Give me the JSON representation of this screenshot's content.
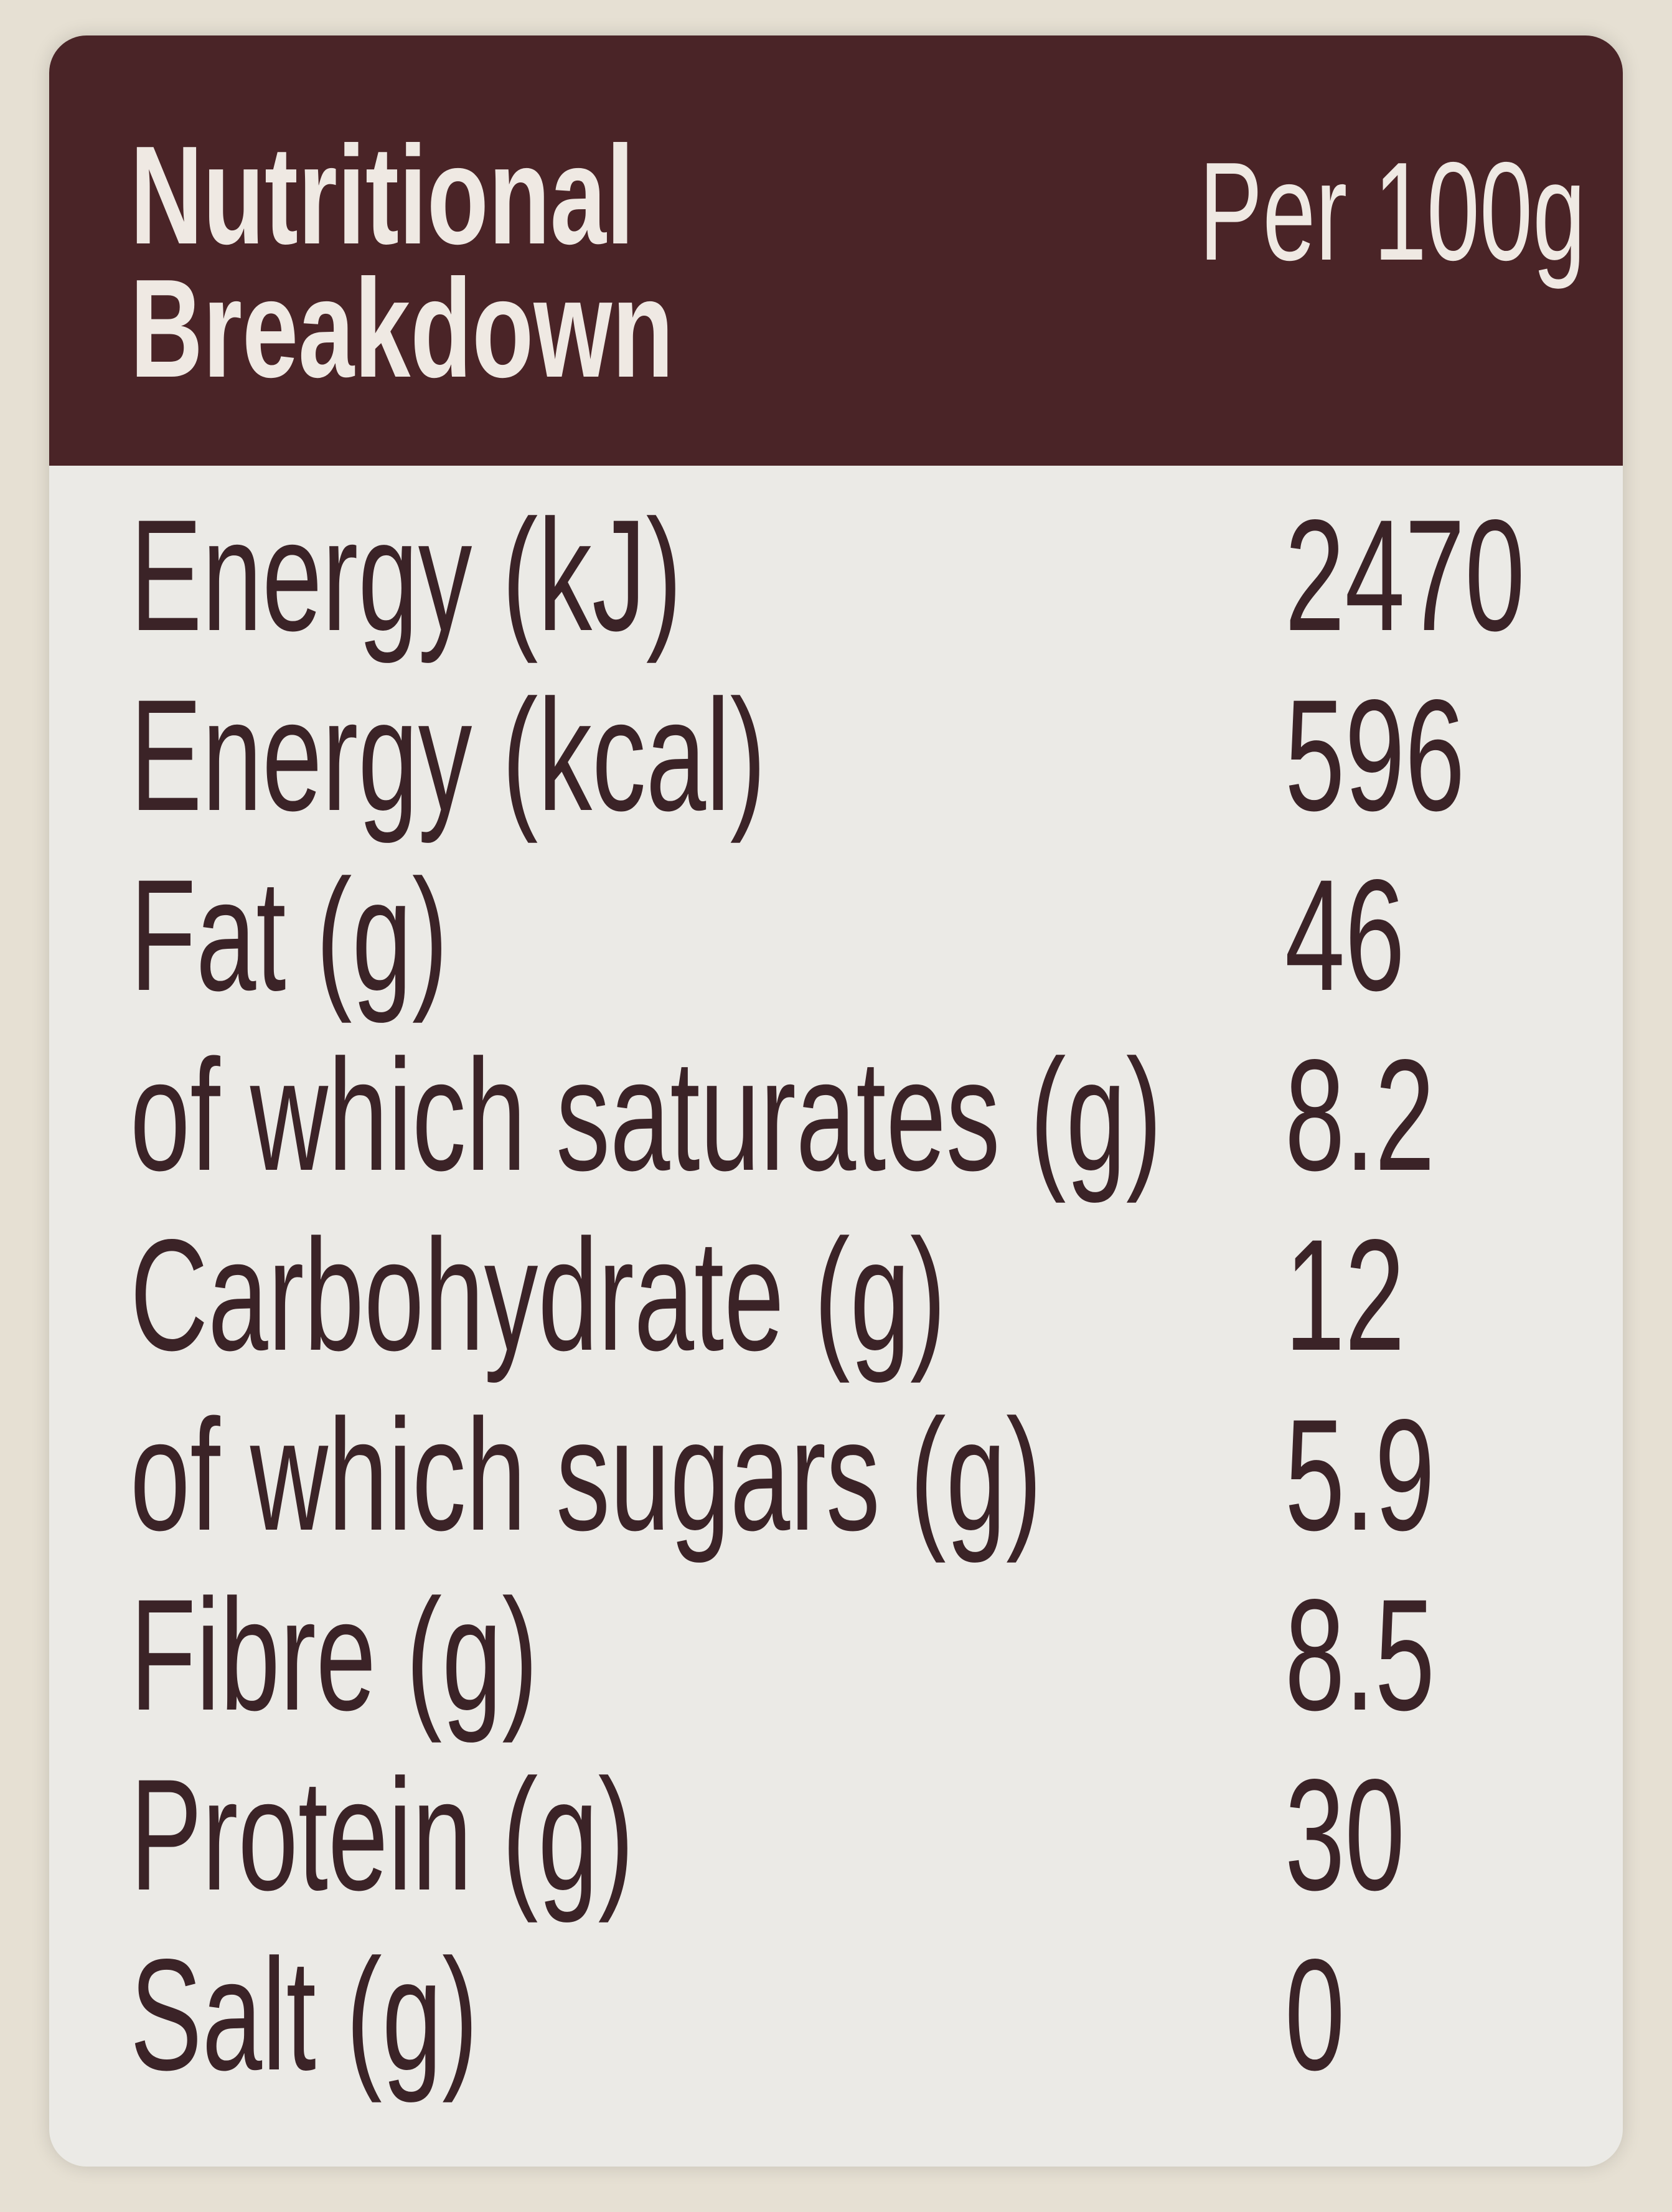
{
  "header": {
    "title": "Nutritional Breakdown",
    "column": "Per 100g"
  },
  "table": {
    "rows": [
      [
        "Energy (kJ)",
        "2470"
      ],
      [
        "Energy (kcal)",
        "596"
      ],
      [
        "Fat (g)",
        "46"
      ],
      [
        "of which saturates (g)",
        "8.2"
      ],
      [
        "Carbohydrate (g)",
        "12"
      ],
      [
        "of which sugars (g)",
        "5.9"
      ],
      [
        "Fibre (g)",
        "8.5"
      ],
      [
        "Protein (g)",
        "30"
      ],
      [
        "Salt (g)",
        "0"
      ]
    ]
  }
}
